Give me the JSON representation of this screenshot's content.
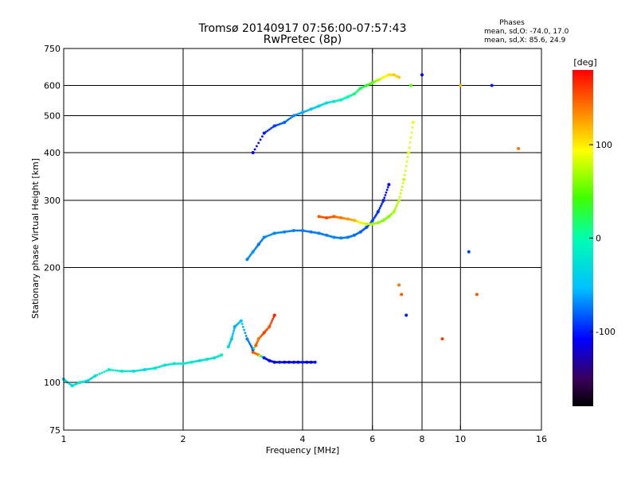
{
  "chart_data": {
    "type": "scatter",
    "title": "Tromsø 20140917 07:56:00-07:57:43",
    "subtitle": "RwPretec (8p)",
    "xlabel": "Frequency [MHz]",
    "ylabel": "Stationary phase Virtual Height [km]",
    "x_scale": "log",
    "y_scale": "log",
    "xlim": [
      1,
      16
    ],
    "ylim": [
      75,
      750
    ],
    "x_ticks": [
      "1",
      "2",
      "4",
      "6",
      "8",
      "10",
      "16"
    ],
    "y_ticks": [
      "75",
      "100",
      "200",
      "300",
      "400",
      "500",
      "600",
      "750"
    ],
    "x_grid": [
      2,
      4,
      6,
      8,
      10
    ],
    "y_grid": [
      100,
      200,
      300,
      400,
      500,
      600
    ],
    "phases_info": {
      "title": "Phases",
      "line1": "mean, sd,O: -74.0, 17.0",
      "line2": "mean, sd,X:  85.6, 24.9"
    },
    "colorbar": {
      "label": "[deg]",
      "range": [
        -180,
        180
      ],
      "ticks": [
        "100",
        "0",
        "-100"
      ],
      "tick_values": [
        100,
        0,
        -100
      ]
    },
    "series": [
      {
        "x": [
          1.0,
          1.05,
          1.1,
          1.15,
          1.2,
          1.3,
          1.4,
          1.5,
          1.6,
          1.7,
          1.8,
          1.9,
          2.0,
          2.1,
          2.2,
          2.3,
          2.4,
          2.5
        ],
        "y": [
          102,
          98,
          100,
          101,
          104,
          108,
          107,
          107,
          108,
          109,
          111,
          112,
          112,
          113,
          114,
          115,
          116,
          118
        ],
        "phase": [
          -40,
          -30,
          -20,
          -35,
          -25,
          -10,
          -20,
          -25,
          -30,
          -20,
          -25,
          -20,
          -25,
          -15,
          -30,
          -20,
          -25,
          -10
        ]
      },
      {
        "x": [
          2.9,
          3.0,
          3.1,
          3.2,
          3.4,
          3.6,
          3.8,
          4.0,
          4.2,
          4.4,
          4.6,
          4.8,
          5.0,
          5.2,
          5.4,
          5.6,
          5.8,
          6.0,
          6.2,
          6.4,
          6.6
        ],
        "y": [
          210,
          220,
          230,
          240,
          246,
          248,
          250,
          250,
          248,
          246,
          243,
          240,
          239,
          240,
          243,
          248,
          255,
          265,
          280,
          300,
          330
        ],
        "phase": [
          -70,
          -65,
          -75,
          -70,
          -70,
          -70,
          -72,
          -75,
          -74,
          -73,
          -72,
          -70,
          -72,
          -74,
          -76,
          -80,
          -85,
          -90,
          -95,
          -100,
          -105
        ]
      },
      {
        "x": [
          4.4,
          4.6,
          4.8,
          5.0,
          5.2,
          5.4,
          5.6,
          5.8,
          6.0,
          6.2,
          6.4,
          6.6,
          6.8,
          7.0,
          7.2,
          7.4,
          7.6
        ],
        "y": [
          272,
          270,
          272,
          270,
          268,
          266,
          262,
          260,
          260,
          262,
          266,
          272,
          280,
          300,
          340,
          400,
          480
        ],
        "phase": [
          150,
          155,
          150,
          140,
          130,
          120,
          90,
          80,
          70,
          65,
          60,
          60,
          70,
          75,
          80,
          85,
          90
        ]
      },
      {
        "x": [
          3.0,
          3.2,
          3.4,
          3.6,
          3.8,
          4.0,
          4.2,
          4.4,
          4.6,
          4.8,
          5.0,
          5.2,
          5.4,
          5.6,
          5.8,
          6.0,
          6.2,
          6.4,
          6.6,
          6.8,
          7.0
        ],
        "y": [
          400,
          450,
          470,
          480,
          500,
          510,
          520,
          530,
          540,
          545,
          550,
          560,
          570,
          590,
          600,
          610,
          620,
          630,
          640,
          640,
          630
        ],
        "phase": [
          -110,
          -100,
          -90,
          -80,
          -70,
          -60,
          -50,
          -40,
          -30,
          -20,
          -10,
          0,
          10,
          20,
          30,
          50,
          70,
          90,
          100,
          110,
          110
        ]
      },
      {
        "x": [
          3.0,
          3.1,
          3.2,
          3.3,
          3.4,
          3.5,
          3.6,
          3.7,
          3.8,
          3.9,
          4.0,
          4.1,
          4.2,
          4.3
        ],
        "y": [
          120,
          118,
          116,
          114,
          113,
          113,
          113,
          113,
          113,
          113,
          113,
          113,
          113,
          113
        ],
        "phase": [
          150,
          140,
          -100,
          -110,
          -120,
          -100,
          -110,
          -120,
          -105,
          -110,
          -100,
          -110,
          -120,
          -100
        ]
      },
      {
        "x": [
          2.6,
          2.65,
          2.7,
          2.8,
          2.9,
          3.0,
          3.05,
          3.1,
          3.2,
          3.3,
          3.4
        ],
        "y": [
          124,
          130,
          140,
          145,
          130,
          122,
          125,
          130,
          135,
          140,
          150
        ],
        "phase": [
          -30,
          -40,
          -60,
          -50,
          -70,
          -90,
          150,
          140,
          160,
          150,
          170
        ]
      },
      {
        "x": [
          7.0,
          7.1,
          7.3,
          7.5,
          8.0,
          9.0,
          10.0,
          10.5,
          11.0,
          12.0,
          14.0
        ],
        "y": [
          180,
          170,
          150,
          600,
          640,
          130,
          600,
          220,
          170,
          600,
          410
        ],
        "phase": [
          140,
          150,
          -100,
          50,
          -110,
          160,
          120,
          -90,
          150,
          -100,
          140
        ]
      }
    ]
  }
}
